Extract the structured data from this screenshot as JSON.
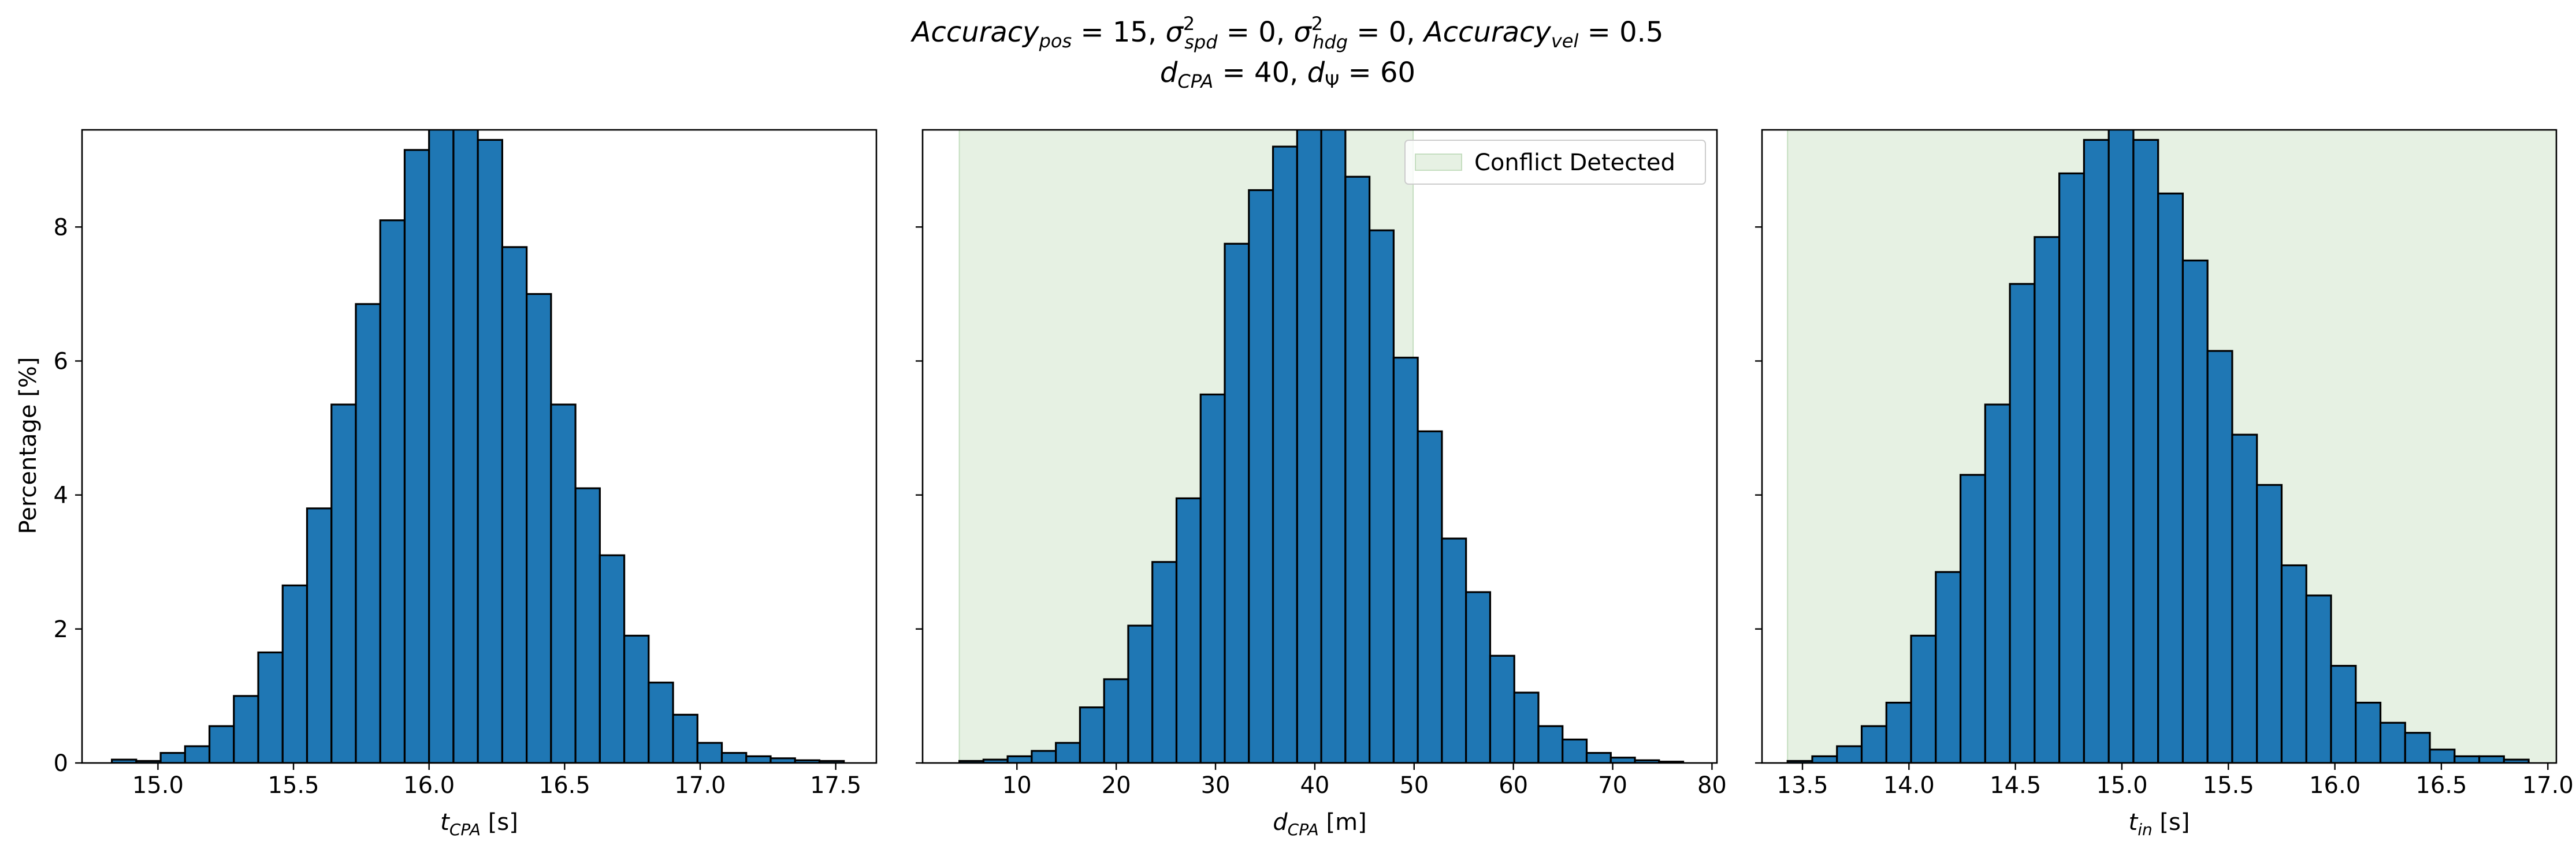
{
  "figure": {
    "title_line1": "Accuracy_pos = 15, σ²_spd = 0, σ²_hdg = 0, Accuracy_vel = 0.5",
    "title_line2": "d_CPA = 40, d_Ψ = 60"
  },
  "ylabel": "Percentage [%]",
  "legend": {
    "label": "Conflict Detected"
  },
  "colors": {
    "bar_fill": "#1f77b4",
    "bar_edge": "#000000",
    "conflict_region": "#e6f1e3",
    "conflict_edge": "#c5dec0"
  },
  "chart_data": [
    {
      "type": "bar",
      "xlabel": "t_CPA [s]",
      "xlim": [
        14.72,
        17.65
      ],
      "ylim": [
        0,
        9.45
      ],
      "xticks": [
        "15.0",
        "15.5",
        "16.0",
        "16.5",
        "17.0",
        "17.5"
      ],
      "yticks": [
        "0",
        "2",
        "4",
        "6",
        "8"
      ],
      "bin_edges": [
        14.83,
        14.92,
        15.01,
        15.1,
        15.19,
        15.28,
        15.37,
        15.46,
        15.55,
        15.64,
        15.73,
        15.82,
        15.91,
        16.0,
        16.09,
        16.18,
        16.27,
        16.36,
        16.45,
        16.54,
        16.63,
        16.72,
        16.81,
        16.9,
        16.99,
        17.08,
        17.17,
        17.26,
        17.35,
        17.44,
        17.53
      ],
      "values": [
        0.05,
        0.03,
        0.15,
        0.25,
        0.55,
        1.0,
        1.65,
        2.65,
        3.8,
        5.35,
        6.85,
        8.1,
        9.15,
        9.6,
        9.55,
        9.3,
        7.7,
        7.0,
        5.35,
        4.1,
        3.1,
        1.9,
        1.2,
        0.72,
        0.3,
        0.15,
        0.1,
        0.07,
        0.04,
        0.03
      ]
    },
    {
      "type": "bar",
      "xlabel": "d_CPA [m]",
      "xlim": [
        0.5,
        80.5
      ],
      "ylim": [
        0,
        9.45
      ],
      "xticks": [
        "10",
        "20",
        "30",
        "40",
        "50",
        "60",
        "70",
        "80"
      ],
      "yticks": [
        "0",
        "2",
        "4",
        "6",
        "8"
      ],
      "shaded_region": {
        "x0": 4.2,
        "x1": 49.9,
        "label": "Conflict Detected"
      },
      "bin_edges": [
        4.2,
        6.63,
        9.06,
        11.49,
        13.92,
        16.35,
        18.78,
        21.21,
        23.64,
        26.07,
        28.5,
        30.93,
        33.36,
        35.79,
        38.22,
        40.65,
        43.08,
        45.51,
        47.94,
        50.37,
        52.8,
        55.23,
        57.66,
        60.09,
        62.52,
        64.95,
        67.38,
        69.81,
        72.24,
        74.67,
        77.1
      ],
      "values": [
        0.03,
        0.05,
        0.1,
        0.18,
        0.3,
        0.83,
        1.25,
        2.05,
        3.0,
        3.95,
        5.5,
        7.75,
        8.55,
        9.2,
        9.6,
        9.55,
        8.75,
        7.95,
        6.05,
        4.95,
        3.35,
        2.55,
        1.6,
        1.05,
        0.55,
        0.35,
        0.15,
        0.08,
        0.04,
        0.02
      ]
    },
    {
      "type": "bar",
      "xlabel": "t_in [s]",
      "xlim": [
        13.31,
        17.04
      ],
      "ylim": [
        0,
        9.45
      ],
      "xticks": [
        "13.5",
        "14.0",
        "14.5",
        "15.0",
        "15.5",
        "16.0",
        "16.5",
        "17.0"
      ],
      "yticks": [
        "0",
        "2",
        "4",
        "6",
        "8"
      ],
      "shaded_region": {
        "x0": 13.43,
        "x1": 17.2,
        "label": "Conflict Detected"
      },
      "bin_edges": [
        13.43,
        13.546,
        13.662,
        13.778,
        13.894,
        14.01,
        14.126,
        14.242,
        14.358,
        14.474,
        14.59,
        14.706,
        14.822,
        14.938,
        15.054,
        15.17,
        15.286,
        15.402,
        15.518,
        15.634,
        15.75,
        15.866,
        15.982,
        16.098,
        16.214,
        16.33,
        16.446,
        16.562,
        16.678,
        16.794,
        16.91
      ],
      "values": [
        0.03,
        0.1,
        0.25,
        0.55,
        0.9,
        1.9,
        2.85,
        4.3,
        5.35,
        7.15,
        7.85,
        8.8,
        9.3,
        9.55,
        9.3,
        8.5,
        7.5,
        6.15,
        4.9,
        4.15,
        2.95,
        2.5,
        1.45,
        0.9,
        0.6,
        0.45,
        0.2,
        0.1,
        0.1,
        0.05
      ]
    }
  ]
}
